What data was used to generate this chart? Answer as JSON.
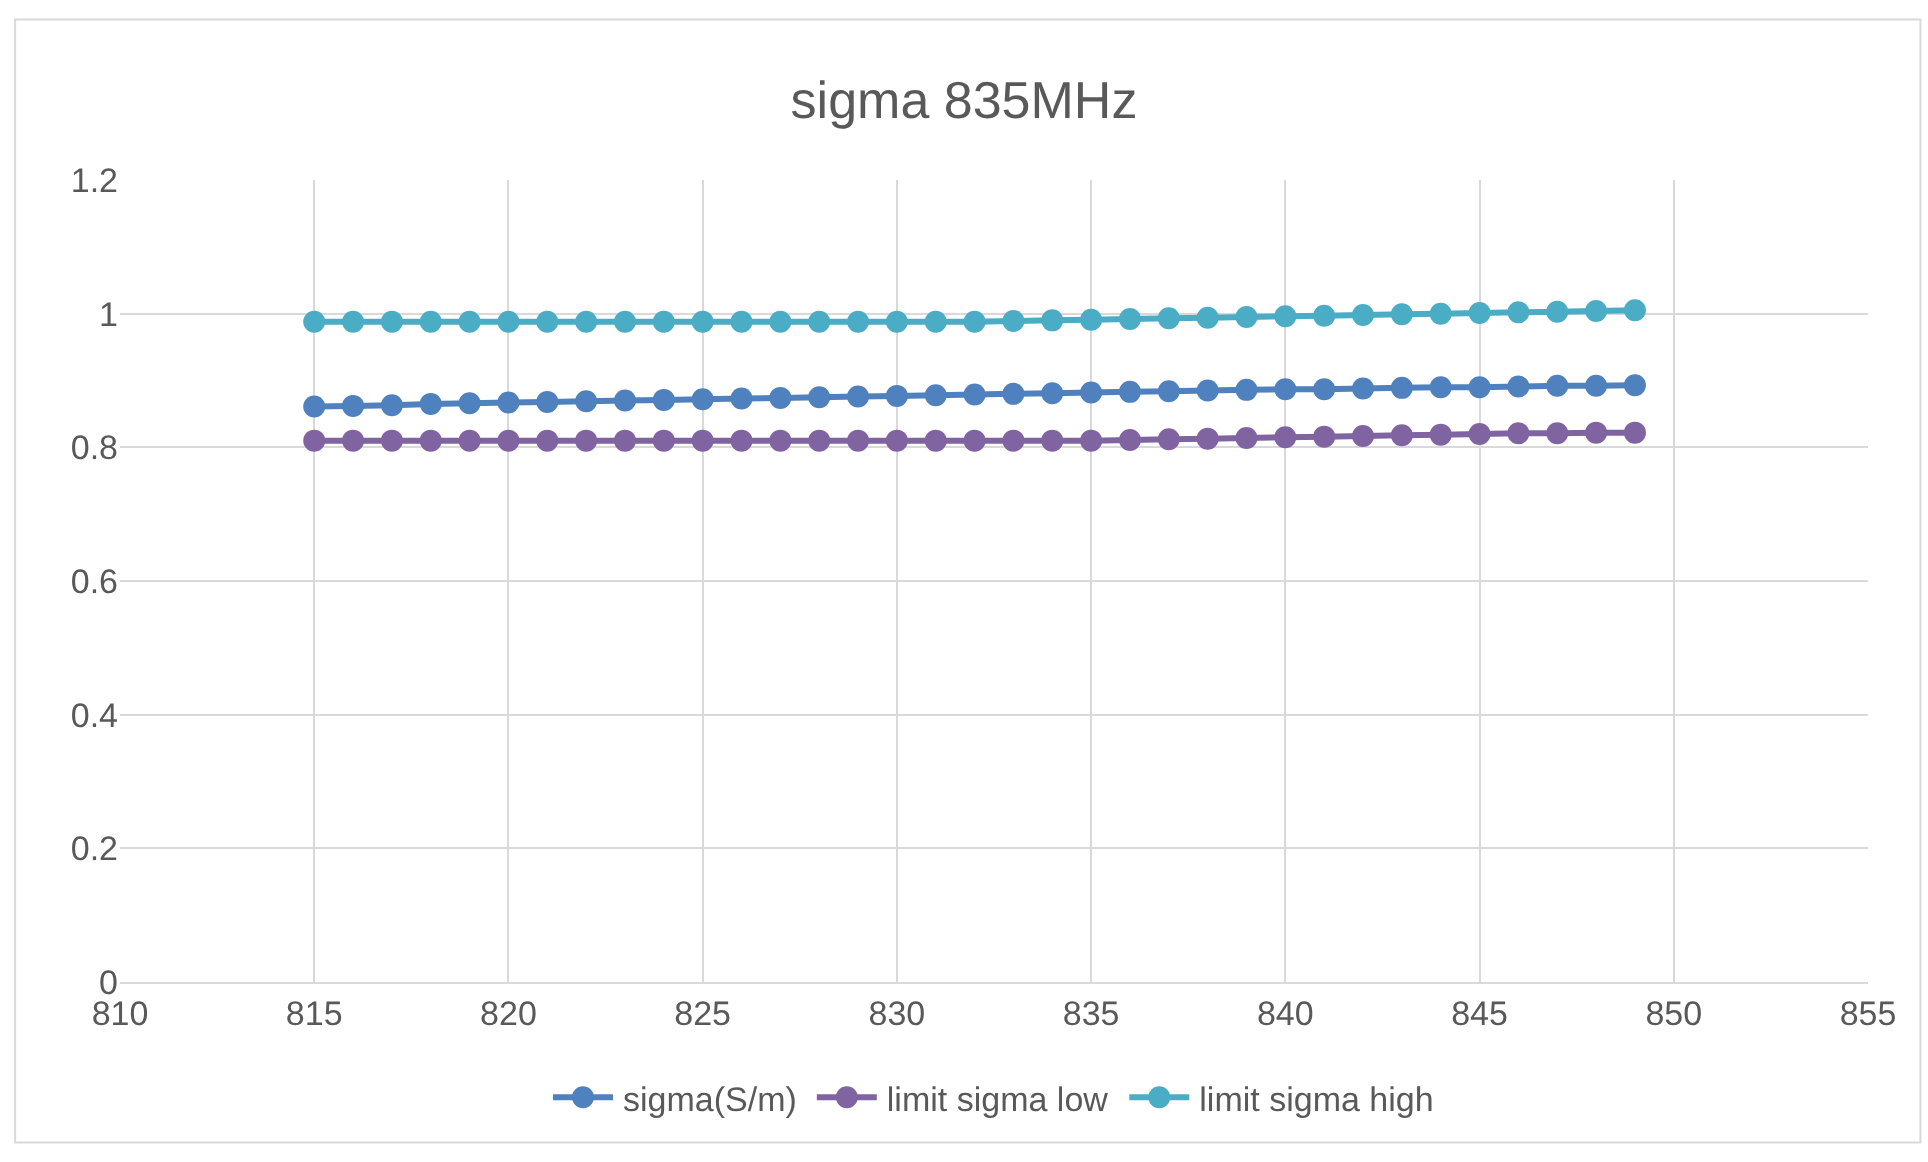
{
  "chart_data": {
    "type": "line",
    "title": "sigma 835MHz",
    "x": [
      815,
      816,
      817,
      818,
      819,
      820,
      821,
      822,
      823,
      824,
      825,
      826,
      827,
      828,
      829,
      830,
      831,
      832,
      833,
      834,
      835,
      836,
      837,
      838,
      839,
      840,
      841,
      842,
      843,
      844,
      845,
      846,
      847,
      848,
      849
    ],
    "series": [
      {
        "name": "sigma(S/m)",
        "color": "#4e81bd",
        "values": [
          0.861,
          0.862,
          0.863,
          0.865,
          0.866,
          0.867,
          0.868,
          0.869,
          0.87,
          0.871,
          0.872,
          0.873,
          0.874,
          0.875,
          0.876,
          0.877,
          0.878,
          0.879,
          0.88,
          0.881,
          0.882,
          0.883,
          0.884,
          0.885,
          0.886,
          0.887,
          0.887,
          0.888,
          0.889,
          0.89,
          0.89,
          0.891,
          0.892,
          0.892,
          0.893
        ]
      },
      {
        "name": "limit sigma low",
        "color": "#8064a2",
        "values": [
          0.81,
          0.81,
          0.81,
          0.81,
          0.81,
          0.81,
          0.81,
          0.81,
          0.81,
          0.81,
          0.81,
          0.81,
          0.81,
          0.81,
          0.81,
          0.81,
          0.81,
          0.81,
          0.81,
          0.81,
          0.81,
          0.811,
          0.812,
          0.813,
          0.814,
          0.815,
          0.816,
          0.817,
          0.818,
          0.819,
          0.82,
          0.821,
          0.821,
          0.822,
          0.822
        ]
      },
      {
        "name": "limit sigma high",
        "color": "#4bacc6",
        "values": [
          0.988,
          0.988,
          0.988,
          0.988,
          0.988,
          0.988,
          0.988,
          0.988,
          0.988,
          0.988,
          0.988,
          0.988,
          0.988,
          0.988,
          0.988,
          0.988,
          0.988,
          0.988,
          0.989,
          0.99,
          0.991,
          0.992,
          0.993,
          0.994,
          0.995,
          0.996,
          0.997,
          0.998,
          0.999,
          1.0,
          1.001,
          1.002,
          1.003,
          1.004,
          1.005
        ]
      }
    ],
    "xlim": [
      810,
      855
    ],
    "xticks": [
      810,
      815,
      820,
      825,
      830,
      835,
      840,
      845,
      850,
      855
    ],
    "ylim": [
      0,
      1.2
    ],
    "yticks": [
      0,
      0.2,
      0.4,
      0.6,
      0.8,
      1,
      1.2
    ],
    "grid": true,
    "legend": "bottom",
    "marker": "circle",
    "line_style": "solid"
  }
}
